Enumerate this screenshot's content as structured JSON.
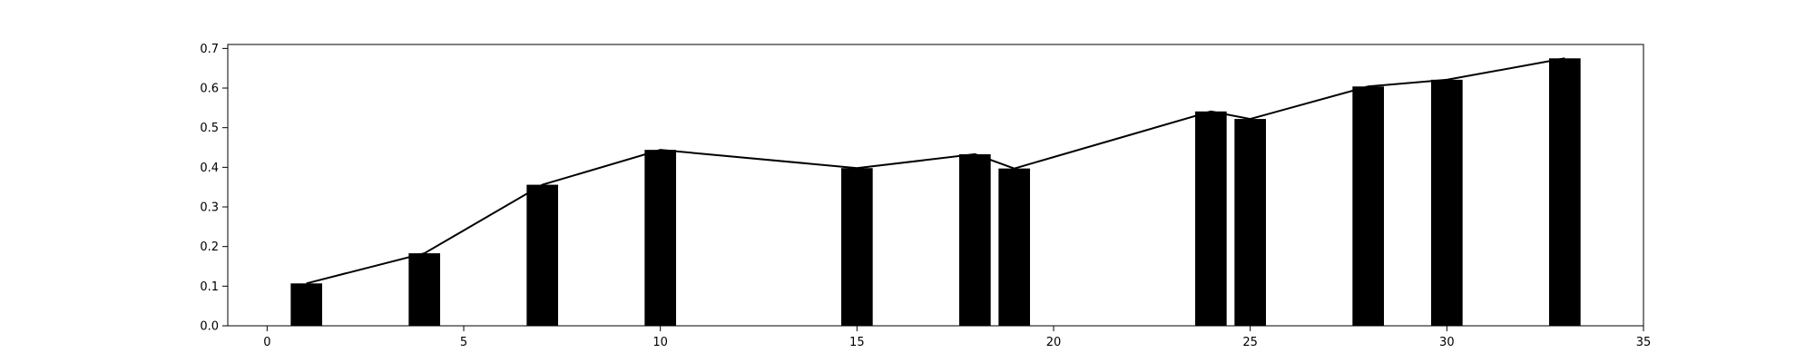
{
  "chart_data": {
    "type": "bar",
    "title": "",
    "xlabel": "",
    "ylabel": "",
    "xlim": [
      -1,
      35
    ],
    "ylim": [
      0,
      0.71
    ],
    "bar_width": 0.8,
    "bar_color": "#000000",
    "line_color": "#000000",
    "grid": false,
    "legend": "none",
    "x_ticks": [
      0,
      5,
      10,
      15,
      20,
      25,
      30,
      35
    ],
    "x_tick_labels": [
      "0",
      "5",
      "10",
      "15",
      "20",
      "25",
      "30",
      "35"
    ],
    "y_ticks": [
      0.0,
      0.1,
      0.2,
      0.3,
      0.4,
      0.5,
      0.6,
      0.7
    ],
    "y_tick_labels": [
      "0.0",
      "0.1",
      "0.2",
      "0.3",
      "0.4",
      "0.5",
      "0.6",
      "0.7"
    ],
    "x": [
      1,
      4,
      7,
      10,
      15,
      18,
      19,
      24,
      25,
      28,
      30,
      33
    ],
    "values": [
      0.107,
      0.183,
      0.356,
      0.444,
      0.398,
      0.433,
      0.397,
      0.541,
      0.522,
      0.604,
      0.621,
      0.675
    ],
    "line": {
      "x": [
        1,
        4,
        7,
        10,
        15,
        18,
        19,
        24,
        25,
        28,
        30,
        33
      ],
      "y": [
        0.107,
        0.183,
        0.356,
        0.444,
        0.398,
        0.433,
        0.397,
        0.541,
        0.522,
        0.604,
        0.621,
        0.675
      ]
    }
  }
}
